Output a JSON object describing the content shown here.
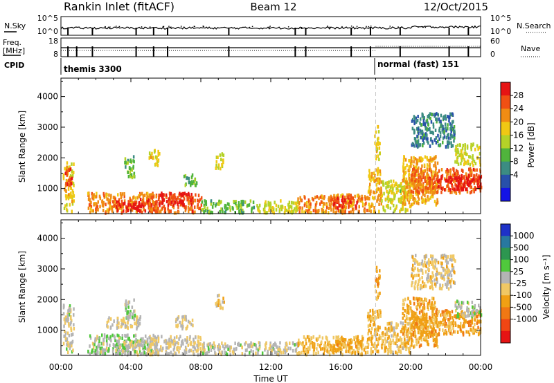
{
  "header": {
    "station": "Rankin Inlet (fitACF)",
    "beam": "Beam 12",
    "date": "12/Oct/2015"
  },
  "top_panels": {
    "nsky_label": "N.Sky",
    "nsky_ticks": [
      "10^5",
      "10^0"
    ],
    "nsearch_label": "N.Search",
    "nsearch_ticks": [
      "10^5",
      "10^0"
    ],
    "freq_label_1": "Freq.",
    "freq_label_2": "[MHz]",
    "freq_ticks": [
      "18",
      "8"
    ],
    "nave_label": "Nave",
    "nave_ticks": [
      "60",
      "0"
    ],
    "cpid_label": "CPID",
    "cpid_segments": [
      {
        "start_hour": 0,
        "label": "themis 3300"
      },
      {
        "start_hour": 18,
        "label": "normal (fast) 151"
      }
    ]
  },
  "chart_data": [
    {
      "type": "heatmap",
      "name": "power",
      "ylabel": "Slant Range [km]",
      "ylim": [
        180,
        4600
      ],
      "xlim": [
        0,
        24
      ],
      "y_ticks": [
        1000,
        2000,
        3000,
        4000
      ],
      "colorbar": {
        "label": "Power [dB]",
        "ticks": [
          "4",
          "8",
          "12",
          "16",
          "20",
          "24",
          "28"
        ],
        "range": [
          0,
          30
        ],
        "colors": [
          "#1414e6",
          "#2850aa",
          "#3c8c82",
          "#50b43c",
          "#b4d228",
          "#f0c814",
          "#f08c14",
          "#f05014",
          "#e61414"
        ]
      },
      "regions": [
        {
          "x": [
            0.1,
            0.7
          ],
          "y": [
            300,
            1900
          ],
          "v": 18
        },
        {
          "x": [
            0.2,
            0.6
          ],
          "y": [
            1100,
            1700
          ],
          "v": 26
        },
        {
          "x": [
            1.5,
            5.5
          ],
          "y": [
            250,
            900
          ],
          "v": 22
        },
        {
          "x": [
            3.0,
            5.5
          ],
          "y": [
            300,
            700
          ],
          "v": 28
        },
        {
          "x": [
            5.0,
            8.0
          ],
          "y": [
            250,
            850
          ],
          "v": 24
        },
        {
          "x": [
            5.5,
            7.5
          ],
          "y": [
            500,
            900
          ],
          "v": 28
        },
        {
          "x": [
            3.6,
            4.2
          ],
          "y": [
            1400,
            2100
          ],
          "v": 12
        },
        {
          "x": [
            5.0,
            5.6
          ],
          "y": [
            1800,
            2300
          ],
          "v": 18
        },
        {
          "x": [
            7.0,
            7.8
          ],
          "y": [
            1100,
            1500
          ],
          "v": 12
        },
        {
          "x": [
            8.8,
            9.3
          ],
          "y": [
            1700,
            2200
          ],
          "v": 16
        },
        {
          "x": [
            8.0,
            11.0
          ],
          "y": [
            250,
            650
          ],
          "v": 12
        },
        {
          "x": [
            11.0,
            13.5
          ],
          "y": [
            250,
            650
          ],
          "v": 16
        },
        {
          "x": [
            13.5,
            17.5
          ],
          "y": [
            250,
            850
          ],
          "v": 22
        },
        {
          "x": [
            15.5,
            17.0
          ],
          "y": [
            400,
            800
          ],
          "v": 26
        },
        {
          "x": [
            17.5,
            18.3
          ],
          "y": [
            300,
            1700
          ],
          "v": 20
        },
        {
          "x": [
            17.9,
            18.2
          ],
          "y": [
            2000,
            3100
          ],
          "v": 18
        },
        {
          "x": [
            18.3,
            20.0
          ],
          "y": [
            300,
            1300
          ],
          "v": 16
        },
        {
          "x": [
            19.5,
            21.5
          ],
          "y": [
            500,
            2100
          ],
          "v": 20
        },
        {
          "x": [
            20.0,
            24.0
          ],
          "y": [
            900,
            1700
          ],
          "v": 24
        },
        {
          "x": [
            21.5,
            24.0
          ],
          "y": [
            1000,
            1500
          ],
          "v": 28
        },
        {
          "x": [
            20.0,
            22.5
          ],
          "y": [
            2400,
            3500
          ],
          "v": 8
        },
        {
          "x": [
            22.5,
            24.0
          ],
          "y": [
            1800,
            2500
          ],
          "v": 16
        }
      ]
    },
    {
      "type": "heatmap",
      "name": "velocity",
      "ylabel": "Slant Range [km]",
      "xlabel": "Time UT",
      "ylim": [
        180,
        4600
      ],
      "xlim": [
        0,
        24
      ],
      "x_ticks": [
        "00:00",
        "04:00",
        "08:00",
        "12:00",
        "16:00",
        "20:00",
        "00:00"
      ],
      "y_ticks": [
        1000,
        2000,
        3000,
        4000
      ],
      "colorbar": {
        "label": "Velocity [m s⁻¹]",
        "ticks": [
          "1000",
          "500",
          "100",
          "25",
          "-25",
          "-100",
          "-500",
          "-1000"
        ],
        "range": [
          -1200,
          1200
        ],
        "colors": [
          "#1e32c8",
          "#2878a0",
          "#2d9650",
          "#50c83c",
          "#b4b4b4",
          "#f0c864",
          "#f0a014",
          "#f07814",
          "#f04614",
          "#e61414"
        ]
      },
      "regions": [
        {
          "x": [
            0.1,
            0.7
          ],
          "y": [
            300,
            1900
          ],
          "v": 60
        },
        {
          "x": [
            1.5,
            5.5
          ],
          "y": [
            250,
            900
          ],
          "v": 150
        },
        {
          "x": [
            3.0,
            5.5
          ],
          "y": [
            300,
            700
          ],
          "v": 80
        },
        {
          "x": [
            2.5,
            4.5
          ],
          "y": [
            1100,
            1500
          ],
          "v": 0
        },
        {
          "x": [
            5.0,
            8.0
          ],
          "y": [
            250,
            850
          ],
          "v": 0
        },
        {
          "x": [
            6.5,
            7.5
          ],
          "y": [
            1100,
            1500
          ],
          "v": 0
        },
        {
          "x": [
            3.6,
            4.2
          ],
          "y": [
            1400,
            2100
          ],
          "v": 150
        },
        {
          "x": [
            8.8,
            9.3
          ],
          "y": [
            1700,
            2200
          ],
          "v": -150
        },
        {
          "x": [
            8.0,
            13.5
          ],
          "y": [
            250,
            650
          ],
          "v": 60
        },
        {
          "x": [
            13.5,
            17.5
          ],
          "y": [
            250,
            850
          ],
          "v": -250
        },
        {
          "x": [
            15.5,
            17.0
          ],
          "y": [
            400,
            800
          ],
          "v": -300
        },
        {
          "x": [
            17.5,
            18.3
          ],
          "y": [
            300,
            1700
          ],
          "v": -200
        },
        {
          "x": [
            17.9,
            18.2
          ],
          "y": [
            2000,
            3100
          ],
          "v": -400
        },
        {
          "x": [
            18.3,
            20.0
          ],
          "y": [
            300,
            1300
          ],
          "v": -150
        },
        {
          "x": [
            19.5,
            21.5
          ],
          "y": [
            500,
            2100
          ],
          "v": -300
        },
        {
          "x": [
            20.0,
            24.0
          ],
          "y": [
            900,
            1700
          ],
          "v": -350
        },
        {
          "x": [
            22.5,
            24.0
          ],
          "y": [
            1500,
            2000
          ],
          "v": 150
        },
        {
          "x": [
            20.0,
            22.5
          ],
          "y": [
            2400,
            3500
          ],
          "v": -100
        }
      ]
    }
  ]
}
